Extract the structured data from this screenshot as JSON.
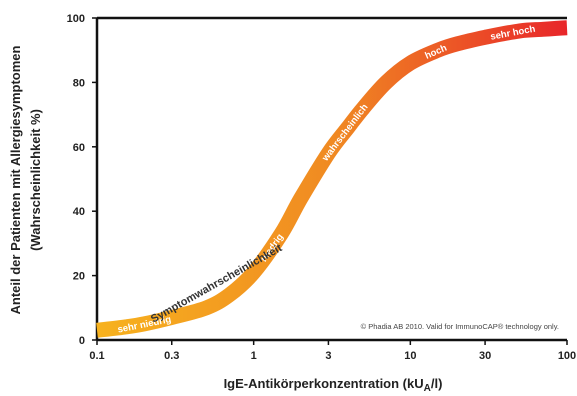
{
  "chart_data": {
    "type": "line",
    "xscale": "log",
    "xlim": [
      0.1,
      100
    ],
    "ylim": [
      0,
      100
    ],
    "xticks": [
      "0.1",
      "0.3",
      "1",
      "3",
      "10",
      "30",
      "100"
    ],
    "yticks": [
      "0",
      "20",
      "40",
      "60",
      "80",
      "100"
    ],
    "xlabel_main": "IgE-Antikörperkonzentration (kU",
    "xlabel_sub": "A",
    "xlabel_end": "/l)",
    "ylabel_line1": "Anteil der Patienten mit Allergiesymptomen",
    "ylabel_line2": "(Wahrscheinlichkeit %)",
    "curve_label": "Symptomwahrscheinlichkeit",
    "copyright": "© Phadia AB 2010. Valid for ImmunoCAP® technology only.",
    "colors": {
      "low": "#f7b21e",
      "mid": "#f08a22",
      "high": "#e8262a"
    },
    "x": [
      0.1,
      0.15,
      0.2,
      0.3,
      0.5,
      0.7,
      1,
      1.5,
      2,
      3,
      4,
      5,
      7,
      10,
      15,
      20,
      30,
      50,
      70,
      100
    ],
    "y": [
      3,
      4,
      5,
      7,
      10,
      14,
      21,
      33,
      44,
      58,
      66,
      72,
      80,
      86,
      90,
      92,
      94,
      96,
      96.5,
      97
    ],
    "bands": [
      {
        "label": "sehr niedrig",
        "x": 0.2
      },
      {
        "label": "niedrig",
        "x": 1.3
      },
      {
        "label": "wahrscheinlich",
        "x": 3.8
      },
      {
        "label": "hoch",
        "x": 14.5
      },
      {
        "label": "sehr hoch",
        "x": 45
      }
    ]
  }
}
